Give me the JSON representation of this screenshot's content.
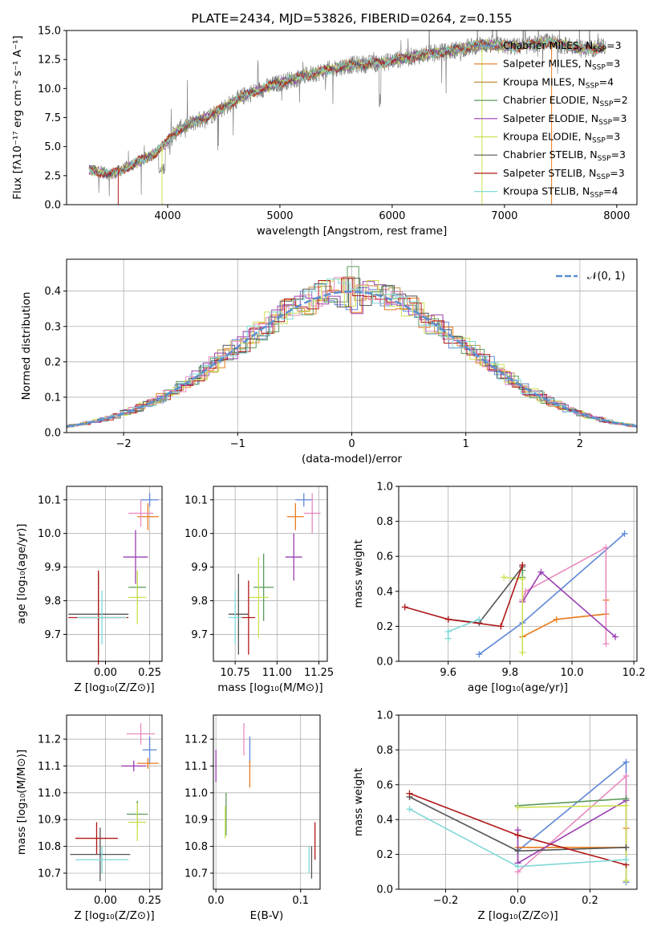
{
  "colors": {
    "chabrier_miles": "#5f87d8",
    "salpeter_miles": "#e87a1c",
    "kroupa_miles": "#c09040",
    "chabrier_elodie": "#5a9a5a",
    "salpeter_elodie": "#9a3fb0",
    "kroupa_elodie": "#cce050",
    "chabrier_stelib": "#555555",
    "salpeter_stelib": "#b01818",
    "kroupa_stelib": "#80d8d8",
    "spectrum": "#808080",
    "pink": "#e88ac0",
    "normal": "#5b8fd0"
  },
  "chart_data": [
    {
      "id": "spectrum",
      "type": "line",
      "title": "PLATE=2434, MJD=53826, FIBERID=0264, z=0.155",
      "xlabel": "wavelength [Angstrom, rest frame]",
      "ylabel": "Flux [fλ10⁻¹⁷ erg cm⁻² s⁻¹ A⁻¹]",
      "xlim": [
        3100,
        8180
      ],
      "ylim": [
        0,
        15
      ],
      "xticks": [
        4000,
        5000,
        6000,
        7000,
        8000
      ],
      "yticks": [
        "0.0",
        "2.5",
        "5.0",
        "7.5",
        "10.0",
        "12.5",
        "15.0"
      ],
      "continuum": [
        [
          3300,
          3.0
        ],
        [
          3500,
          2.6
        ],
        [
          3700,
          3.5
        ],
        [
          3900,
          4.5
        ],
        [
          4100,
          6.5
        ],
        [
          4400,
          7.8
        ],
        [
          4700,
          9.5
        ],
        [
          5000,
          10.5
        ],
        [
          5300,
          11.3
        ],
        [
          5600,
          12.0
        ],
        [
          5900,
          12.2
        ],
        [
          6200,
          12.8
        ],
        [
          6500,
          13.2
        ],
        [
          6800,
          13.8
        ],
        [
          7100,
          13.6
        ],
        [
          7400,
          14.0
        ],
        [
          7700,
          13.4
        ],
        [
          7900,
          13.6
        ]
      ],
      "legend": [
        {
          "label": "Chabrier MILES, N",
          "sub": "SSP",
          "suffix": "=3",
          "color": "chabrier_miles"
        },
        {
          "label": "Salpeter MILES, N",
          "sub": "SSP",
          "suffix": "=3",
          "color": "salpeter_miles"
        },
        {
          "label": "Kroupa MILES, N",
          "sub": "SSP",
          "suffix": "=4",
          "color": "kroupa_miles"
        },
        {
          "label": "Chabrier ELODIE, N",
          "sub": "SSP",
          "suffix": "=2",
          "color": "chabrier_elodie"
        },
        {
          "label": "Salpeter ELODIE, N",
          "sub": "SSP",
          "suffix": "=3",
          "color": "salpeter_elodie"
        },
        {
          "label": "Kroupa ELODIE, N",
          "sub": "SSP",
          "suffix": "=3",
          "color": "kroupa_elodie"
        },
        {
          "label": "Chabrier STELIB, N",
          "sub": "SSP",
          "suffix": "=3",
          "color": "chabrier_stelib"
        },
        {
          "label": "Salpeter STELIB, N",
          "sub": "SSP",
          "suffix": "=3",
          "color": "salpeter_stelib"
        },
        {
          "label": "Kroupa STELIB, N",
          "sub": "SSP",
          "suffix": "=4",
          "color": "kroupa_stelib"
        }
      ]
    },
    {
      "id": "residuals",
      "type": "line",
      "xlabel": "(data-model)/error",
      "ylabel": "Normed distribution",
      "xlim": [
        -2.5,
        2.5
      ],
      "ylim": [
        0,
        0.49
      ],
      "xticks": [
        "−2",
        "−1",
        "0",
        "1",
        "2"
      ],
      "xtick_values": [
        -2,
        -1,
        0,
        1,
        2
      ],
      "yticks": [
        "0.0",
        "0.1",
        "0.2",
        "0.3",
        "0.4"
      ],
      "ytick_values": [
        0,
        0.1,
        0.2,
        0.3,
        0.4
      ],
      "grid": true,
      "legend": {
        "label": "𝒩(0, 1)",
        "color": "normal",
        "style": "dashed"
      }
    },
    {
      "id": "z_age",
      "type": "scatter",
      "xlabel": "Z [log₁₀(Z/Z⊙)]",
      "ylabel": "age  [log₁₀(age/yr)]",
      "xlim": [
        -0.22,
        0.32
      ],
      "ylim": [
        9.62,
        10.14
      ],
      "xticks": [
        "0.00",
        "0.25"
      ],
      "xtick_values": [
        0,
        0.25
      ],
      "yticks": [
        "9.7",
        "9.8",
        "9.9",
        "10.0",
        "10.1"
      ],
      "ytick_values": [
        9.7,
        9.8,
        9.9,
        10.0,
        10.1
      ],
      "points": [
        {
          "x": 0.25,
          "y": 10.1,
          "ex": 0.05,
          "ey": 0.02,
          "c": "chabrier_miles"
        },
        {
          "x": 0.24,
          "y": 10.05,
          "ex": 0.06,
          "ey": 0.04,
          "c": "salpeter_miles"
        },
        {
          "x": 0.2,
          "y": 10.06,
          "ex": 0.07,
          "ey": 0.04,
          "c": "pink"
        },
        {
          "x": 0.17,
          "y": 9.93,
          "ex": 0.07,
          "ey": 0.08,
          "c": "salpeter_elodie"
        },
        {
          "x": 0.18,
          "y": 9.84,
          "ex": 0.05,
          "ey": 0.05,
          "c": "chabrier_elodie"
        },
        {
          "x": 0.18,
          "y": 9.81,
          "ex": 0.05,
          "ey": 0.08,
          "c": "kroupa_elodie"
        },
        {
          "x": -0.04,
          "y": 9.76,
          "ex": 0.17,
          "ey": 0.12,
          "c": "chabrier_stelib"
        },
        {
          "x": -0.04,
          "y": 9.75,
          "ex": 0.17,
          "ey": 0.14,
          "c": "salpeter_stelib"
        },
        {
          "x": -0.02,
          "y": 9.75,
          "ex": 0.14,
          "ey": 0.08,
          "c": "kroupa_stelib"
        }
      ]
    },
    {
      "id": "mass_age",
      "type": "scatter",
      "xlabel": "mass [log₁₀(M/M⊙)]",
      "xlim": [
        10.62,
        11.3
      ],
      "ylim": [
        9.62,
        10.14
      ],
      "xticks": [
        "10.75",
        "11.00",
        "11.25"
      ],
      "xtick_values": [
        10.75,
        11.0,
        11.25
      ],
      "yticks": [
        "9.7",
        "9.8",
        "9.9",
        "10.0",
        "10.1"
      ],
      "ytick_values": [
        9.7,
        9.8,
        9.9,
        10.0,
        10.1
      ],
      "points": [
        {
          "x": 11.16,
          "y": 10.1,
          "ex": 0.05,
          "ey": 0.02,
          "c": "chabrier_miles"
        },
        {
          "x": 11.11,
          "y": 10.05,
          "ex": 0.05,
          "ey": 0.04,
          "c": "salpeter_miles"
        },
        {
          "x": 11.21,
          "y": 10.06,
          "ex": 0.05,
          "ey": 0.06,
          "c": "pink"
        },
        {
          "x": 11.1,
          "y": 9.93,
          "ex": 0.05,
          "ey": 0.07,
          "c": "salpeter_elodie"
        },
        {
          "x": 10.92,
          "y": 9.84,
          "ex": 0.06,
          "ey": 0.1,
          "c": "chabrier_elodie"
        },
        {
          "x": 10.89,
          "y": 9.81,
          "ex": 0.06,
          "ey": 0.12,
          "c": "kroupa_elodie"
        },
        {
          "x": 10.77,
          "y": 9.76,
          "ex": 0.06,
          "ey": 0.12,
          "c": "chabrier_stelib"
        },
        {
          "x": 10.83,
          "y": 9.75,
          "ex": 0.04,
          "ey": 0.11,
          "c": "salpeter_stelib"
        },
        {
          "x": 10.75,
          "y": 9.75,
          "ex": 0.04,
          "ey": 0.08,
          "c": "kroupa_stelib"
        }
      ]
    },
    {
      "id": "age_weight",
      "type": "line",
      "xlabel": "age  [log₁₀(age/yr)]",
      "ylabel": "mass weight",
      "xlim": [
        9.44,
        10.21
      ],
      "ylim": [
        0,
        1
      ],
      "xticks": [
        "9.6",
        "9.8",
        "10.0",
        "10.2"
      ],
      "xtick_values": [
        9.6,
        9.8,
        10.0,
        10.2
      ],
      "yticks": [
        "0.0",
        "0.2",
        "0.4",
        "0.6",
        "0.8",
        "1.0"
      ],
      "ytick_values": [
        0,
        0.2,
        0.4,
        0.6,
        0.8,
        1.0
      ],
      "grid": true,
      "series": [
        {
          "c": "chabrier_miles",
          "pts": [
            [
              9.7,
              0.04
            ],
            [
              9.84,
              0.22
            ],
            [
              10.17,
              0.73
            ]
          ]
        },
        {
          "c": "salpeter_miles",
          "pts": [
            [
              9.84,
              0.14
            ],
            [
              9.95,
              0.24
            ],
            [
              10.11,
              0.27
            ],
            [
              10.11,
              0.35
            ]
          ]
        },
        {
          "c": "pink",
          "pts": [
            [
              9.84,
              0.35
            ],
            [
              9.85,
              0.4
            ],
            [
              10.11,
              0.65
            ],
            [
              10.11,
              0.1
            ]
          ]
        },
        {
          "c": "salpeter_elodie",
          "pts": [
            [
              9.84,
              0.34
            ],
            [
              9.9,
              0.51
            ],
            [
              10.14,
              0.14
            ]
          ]
        },
        {
          "c": "chabrier_elodie",
          "pts": [
            [
              9.84,
              0.48
            ],
            [
              9.84,
              0.52
            ]
          ]
        },
        {
          "c": "kroupa_elodie",
          "pts": [
            [
              9.78,
              0.48
            ],
            [
              9.84,
              0.47
            ],
            [
              9.84,
              0.05
            ]
          ]
        },
        {
          "c": "chabrier_stelib",
          "pts": [
            [
              9.6,
              0.24
            ],
            [
              9.7,
              0.22
            ],
            [
              9.84,
              0.54
            ]
          ]
        },
        {
          "c": "salpeter_stelib",
          "pts": [
            [
              9.46,
              0.31
            ],
            [
              9.6,
              0.24
            ],
            [
              9.77,
              0.2
            ],
            [
              9.84,
              0.55
            ]
          ]
        },
        {
          "c": "kroupa_stelib",
          "pts": [
            [
              9.6,
              0.13
            ],
            [
              9.6,
              0.17
            ],
            [
              9.7,
              0.24
            ]
          ]
        }
      ]
    },
    {
      "id": "z_mass",
      "type": "scatter",
      "xlabel": "Z [log₁₀(Z/Z⊙)]",
      "ylabel": "mass [log₁₀(M/M⊙)]",
      "xlim": [
        -0.22,
        0.32
      ],
      "ylim": [
        10.64,
        11.29
      ],
      "xticks": [
        "0.00",
        "0.25"
      ],
      "xtick_values": [
        0,
        0.25
      ],
      "yticks": [
        "10.7",
        "10.8",
        "10.9",
        "11.0",
        "11.1",
        "11.2"
      ],
      "ytick_values": [
        10.7,
        10.8,
        10.9,
        11.0,
        11.1,
        11.2
      ],
      "points": [
        {
          "x": 0.25,
          "y": 11.16,
          "ex": 0.04,
          "ey": 0.05,
          "c": "chabrier_miles"
        },
        {
          "x": 0.24,
          "y": 11.11,
          "ex": 0.06,
          "ey": 0.02,
          "c": "salpeter_miles"
        },
        {
          "x": 0.2,
          "y": 11.22,
          "ex": 0.08,
          "ey": 0.04,
          "c": "pink"
        },
        {
          "x": 0.16,
          "y": 11.1,
          "ex": 0.07,
          "ey": 0.02,
          "c": "salpeter_elodie"
        },
        {
          "x": 0.18,
          "y": 10.92,
          "ex": 0.06,
          "ey": 0.05,
          "c": "chabrier_elodie"
        },
        {
          "x": 0.18,
          "y": 10.89,
          "ex": 0.05,
          "ey": 0.07,
          "c": "kroupa_elodie"
        },
        {
          "x": -0.03,
          "y": 10.77,
          "ex": 0.17,
          "ey": 0.1,
          "c": "chabrier_stelib"
        },
        {
          "x": -0.05,
          "y": 10.83,
          "ex": 0.12,
          "ey": 0.06,
          "c": "salpeter_stelib"
        },
        {
          "x": -0.02,
          "y": 10.75,
          "ex": 0.15,
          "ey": 0.05,
          "c": "kroupa_stelib"
        }
      ]
    },
    {
      "id": "ebv_mass",
      "type": "scatter",
      "xlabel": "E(B-V)",
      "xlim": [
        -0.003,
        0.123
      ],
      "ylim": [
        10.64,
        11.29
      ],
      "xticks": [
        "0.0",
        "0.1"
      ],
      "xtick_values": [
        0,
        0.1
      ],
      "yticks": [
        "10.7",
        "10.8",
        "10.9",
        "11.0",
        "11.1",
        "11.2"
      ],
      "ytick_values": [
        10.7,
        10.8,
        10.9,
        11.0,
        11.1,
        11.2
      ],
      "points": [
        {
          "x": 0.04,
          "y": 11.16,
          "ey": 0.05,
          "c": "chabrier_miles"
        },
        {
          "x": 0.04,
          "y": 11.07,
          "ey": 0.05,
          "c": "salpeter_miles"
        },
        {
          "x": 0.033,
          "y": 11.2,
          "ey": 0.06,
          "c": "pink"
        },
        {
          "x": 0.0,
          "y": 11.1,
          "ey": 0.06,
          "c": "salpeter_elodie"
        },
        {
          "x": 0.012,
          "y": 10.92,
          "ey": 0.08,
          "c": "chabrier_elodie"
        },
        {
          "x": 0.011,
          "y": 10.89,
          "ey": 0.06,
          "c": "kroupa_elodie"
        },
        {
          "x": 0.113,
          "y": 10.74,
          "ey": 0.06,
          "c": "chabrier_stelib"
        },
        {
          "x": 0.117,
          "y": 10.82,
          "ey": 0.07,
          "c": "salpeter_stelib"
        },
        {
          "x": 0.11,
          "y": 10.75,
          "ey": 0.05,
          "c": "kroupa_stelib"
        }
      ]
    },
    {
      "id": "z_weight",
      "type": "line",
      "xlabel": "Z [log₁₀(Z/Z⊙)]",
      "ylabel": "mass weight",
      "xlim": [
        -0.33,
        0.33
      ],
      "ylim": [
        0,
        1
      ],
      "xticks": [
        "−0.2",
        "0.0",
        "0.2"
      ],
      "xtick_values": [
        -0.2,
        0,
        0.2
      ],
      "yticks": [
        "0.0",
        "0.2",
        "0.4",
        "0.6",
        "0.8",
        "1.0"
      ],
      "ytick_values": [
        0,
        0.2,
        0.4,
        0.6,
        0.8,
        1.0
      ],
      "grid": true,
      "series": [
        {
          "c": "chabrier_miles",
          "pts": [
            [
              0.0,
              0.22
            ],
            [
              0.3,
              0.73
            ],
            [
              0.3,
              0.04
            ]
          ]
        },
        {
          "c": "salpeter_miles",
          "pts": [
            [
              0.0,
              0.24
            ],
            [
              0.3,
              0.24
            ],
            [
              0.3,
              0.35
            ]
          ]
        },
        {
          "c": "pink",
          "pts": [
            [
              0.0,
              0.1
            ],
            [
              0.3,
              0.65
            ],
            [
              0.3,
              0.24
            ]
          ]
        },
        {
          "c": "salpeter_elodie",
          "pts": [
            [
              0.0,
              0.34
            ],
            [
              0.0,
              0.15
            ],
            [
              0.3,
              0.51
            ]
          ]
        },
        {
          "c": "chabrier_elodie",
          "pts": [
            [
              0.0,
              0.48
            ],
            [
              0.3,
              0.52
            ]
          ]
        },
        {
          "c": "kroupa_elodie",
          "pts": [
            [
              0.0,
              0.47
            ],
            [
              0.3,
              0.48
            ],
            [
              0.3,
              0.05
            ]
          ]
        },
        {
          "c": "chabrier_stelib",
          "pts": [
            [
              -0.3,
              0.53
            ],
            [
              0.0,
              0.22
            ],
            [
              0.3,
              0.24
            ]
          ]
        },
        {
          "c": "salpeter_stelib",
          "pts": [
            [
              -0.3,
              0.55
            ],
            [
              0.0,
              0.31
            ],
            [
              0.3,
              0.14
            ]
          ]
        },
        {
          "c": "kroupa_stelib",
          "pts": [
            [
              -0.3,
              0.46
            ],
            [
              0.0,
              0.13
            ],
            [
              0.3,
              0.17
            ]
          ]
        }
      ]
    }
  ]
}
